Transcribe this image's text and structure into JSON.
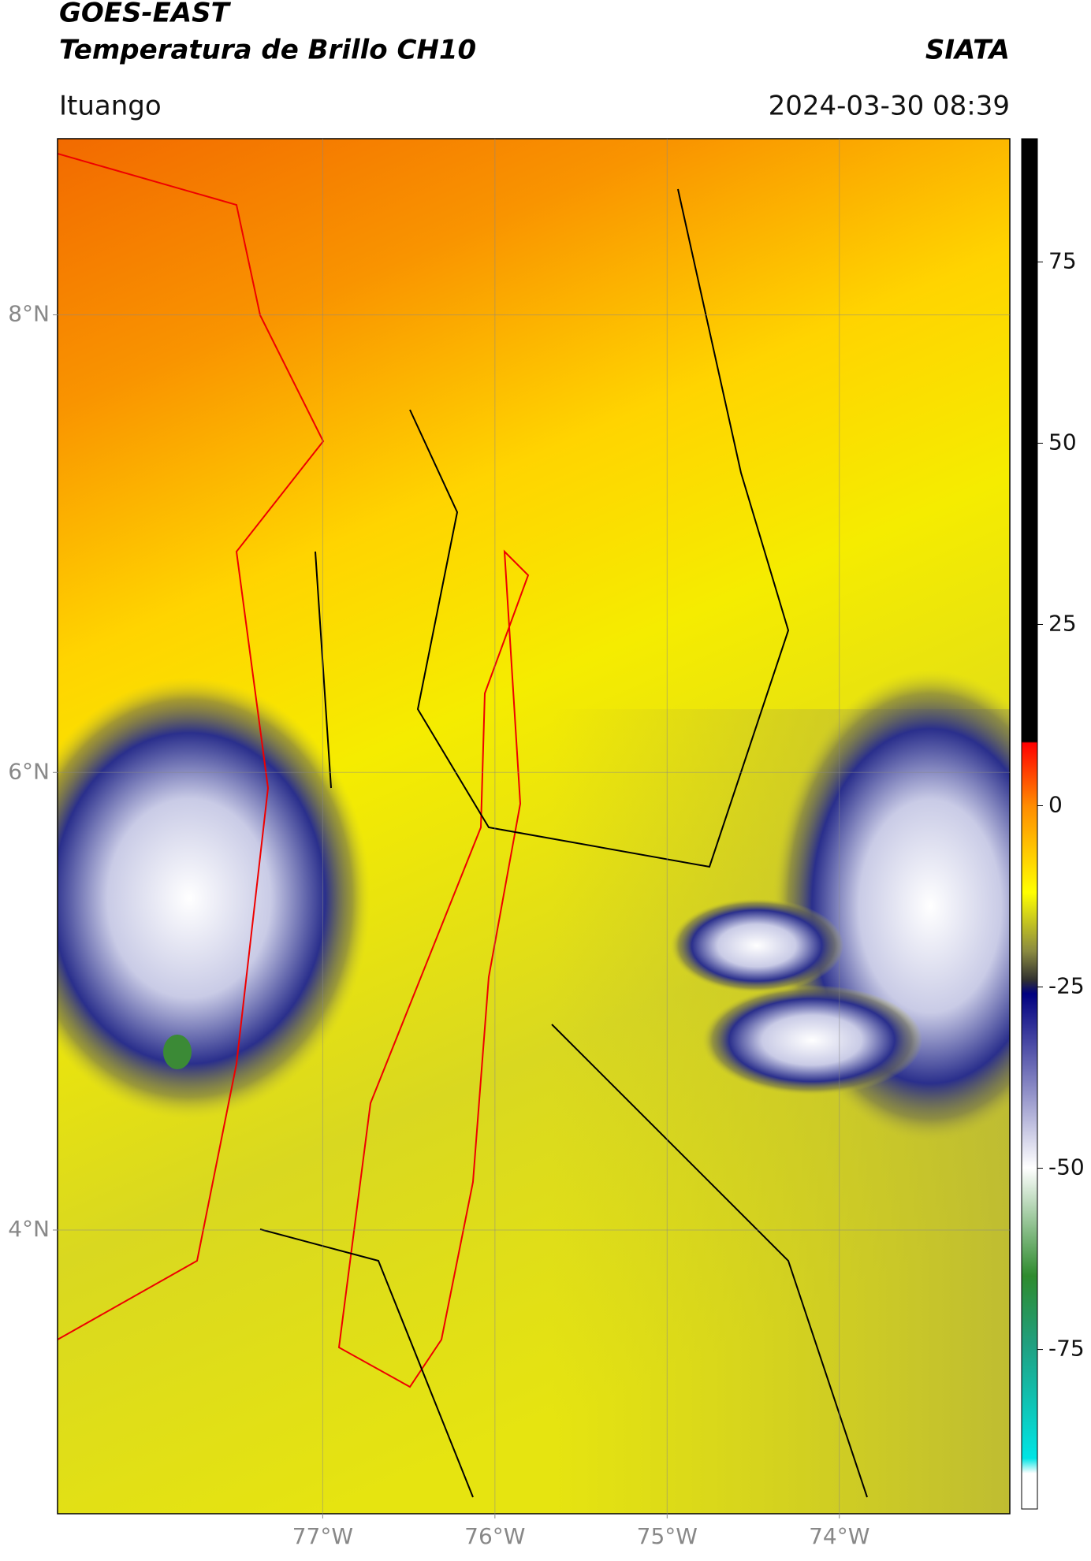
{
  "header": {
    "title": "GOES-EAST",
    "subtitle": "Temperatura de Brillo CH10",
    "source": "SIATA",
    "location": "Ituango",
    "datetime": "2024-03-30 08:39"
  },
  "map": {
    "xlim": [
      -78.54,
      -73.01
    ],
    "ylim": [
      2.76,
      8.77
    ],
    "xticks": [
      {
        "value": -77,
        "label": "77°W"
      },
      {
        "value": -76,
        "label": "76°W"
      },
      {
        "value": -75,
        "label": "75°W"
      },
      {
        "value": -74,
        "label": "74°W"
      }
    ],
    "yticks": [
      {
        "value": 8,
        "label": "8°N"
      },
      {
        "value": 6,
        "label": "6°N"
      },
      {
        "value": 4,
        "label": "4°N"
      }
    ]
  },
  "colorbar": {
    "lim": [
      -97,
      92
    ],
    "ticks": [
      75,
      50,
      25,
      0,
      -25,
      -50,
      -75
    ]
  }
}
